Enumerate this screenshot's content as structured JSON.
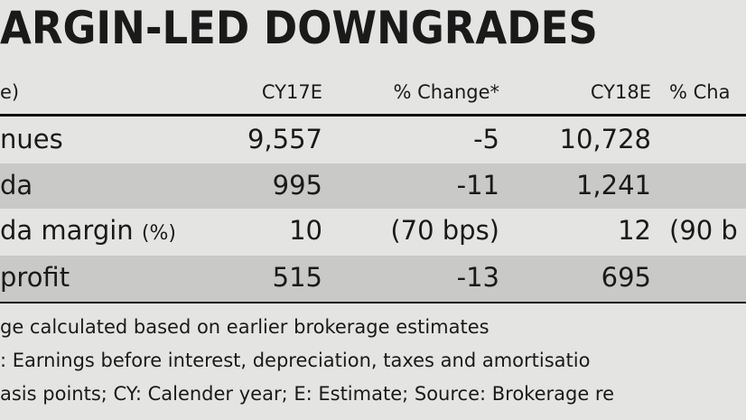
{
  "header": {
    "title": "ARGIN-LED DOWNGRADES"
  },
  "table": {
    "columns": [
      "e)",
      "CY17E",
      "% Change*",
      "CY18E",
      "% Cha"
    ],
    "rows": [
      {
        "label": "nues",
        "cells": [
          "9,557",
          "-5",
          "10,728"
        ]
      },
      {
        "label": "da",
        "cells": [
          "995",
          "-11",
          "1,241"
        ]
      },
      {
        "label": "da margin",
        "unit": "(%)",
        "cells": [
          "10",
          "(70 bps)",
          "12",
          "(90 b"
        ]
      },
      {
        "label": "profit",
        "cells": [
          "515",
          "-13",
          "695"
        ]
      }
    ]
  },
  "footnotes": [
    "ge calculated based on earlier brokerage estimates",
    ": Earnings before interest, depreciation, taxes and amortisatio",
    "asis points; CY: Calender year; E: Estimate; Source: Brokerage re"
  ]
}
